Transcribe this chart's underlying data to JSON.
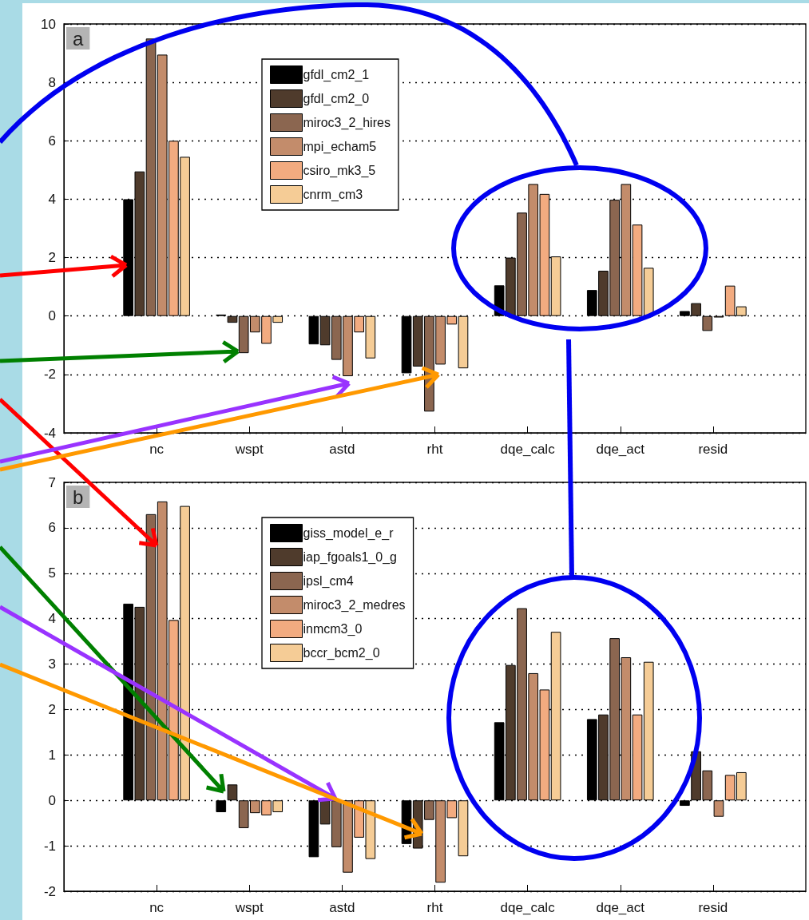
{
  "chart_data": [
    {
      "type": "bar",
      "categories": [
        "nc",
        "wspt",
        "astd",
        "rht",
        "dqe_calc",
        "dqe_act",
        "resid"
      ],
      "ylim": [
        -4,
        10
      ],
      "yticks": [
        -4,
        -2,
        0,
        2,
        4,
        6,
        8,
        10
      ],
      "grid": "y",
      "legend": "top",
      "annotations": [
        "a"
      ],
      "series": [
        {
          "name": "gfdl_cm2_1",
          "color": "#000000",
          "values": [
            4.0,
            0.05,
            -0.97,
            -1.96,
            1.05,
            0.89,
            0.17
          ]
        },
        {
          "name": "gfdl_cm2_0",
          "color": "#4f3b2c",
          "values": [
            4.95,
            -0.23,
            -1.0,
            -1.73,
            2.0,
            1.55,
            0.44
          ]
        },
        {
          "name": "miroc3_2_hires",
          "color": "#8b6650",
          "values": [
            9.5,
            -1.27,
            -1.5,
            -3.27,
            3.54,
            3.98,
            -0.51
          ]
        },
        {
          "name": "mpi_echam5",
          "color": "#c38c6b",
          "values": [
            8.95,
            -0.56,
            -2.06,
            -1.66,
            4.52,
            4.52,
            -0.05
          ]
        },
        {
          "name": "csiro_mk3_5",
          "color": "#f2ab80",
          "values": [
            6.0,
            -0.95,
            -0.56,
            -0.29,
            4.18,
            3.13,
            1.04
          ]
        },
        {
          "name": "cnrm_cm3",
          "color": "#f5cc96",
          "values": [
            5.45,
            -0.23,
            -1.45,
            -1.79,
            2.04,
            1.65,
            0.33
          ]
        }
      ]
    },
    {
      "type": "bar",
      "categories": [
        "nc",
        "wspt",
        "astd",
        "rht",
        "dqe_calc",
        "dqe_act",
        "resid"
      ],
      "ylim": [
        -2,
        7
      ],
      "yticks": [
        -2,
        -1,
        0,
        1,
        2,
        3,
        4,
        5,
        6,
        7
      ],
      "grid": "y",
      "legend": "top",
      "annotations": [
        "b"
      ],
      "series": [
        {
          "name": "giss_model_e_r",
          "color": "#000000",
          "values": [
            4.33,
            -0.26,
            -1.25,
            -0.96,
            1.72,
            1.79,
            -0.12
          ]
        },
        {
          "name": "iap_fgoals1_0_g",
          "color": "#4f3b2c",
          "values": [
            4.26,
            0.35,
            -0.53,
            -1.06,
            2.98,
            1.89,
            1.08
          ]
        },
        {
          "name": "ipsl_cm4",
          "color": "#8b6650",
          "values": [
            6.3,
            -0.61,
            -1.03,
            -0.43,
            4.23,
            3.57,
            0.66
          ]
        },
        {
          "name": "miroc3_2_medres",
          "color": "#c38c6b",
          "values": [
            6.58,
            -0.28,
            -1.59,
            -1.81,
            2.8,
            3.15,
            -0.36
          ]
        },
        {
          "name": "inmcm3_0",
          "color": "#f2ab80",
          "values": [
            3.97,
            -0.33,
            -0.82,
            -0.39,
            2.44,
            1.89,
            0.56
          ]
        },
        {
          "name": "bccr_bcm2_0",
          "color": "#f5cc96",
          "values": [
            6.48,
            -0.26,
            -1.29,
            -1.23,
            3.71,
            3.05,
            0.62
          ]
        }
      ]
    }
  ]
}
